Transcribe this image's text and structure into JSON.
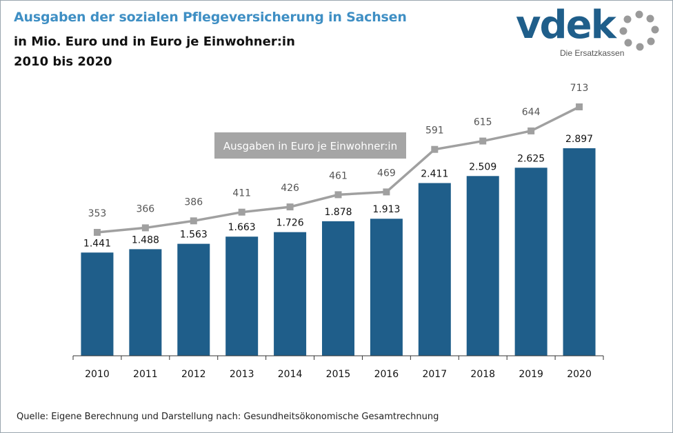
{
  "header": {
    "title": "Ausgaben der sozialen Pflegeversicherung in Sachsen",
    "subtitle_line1": "in Mio. Euro und in Euro je Einwohner:in",
    "subtitle_line2": "2010 bis 2020"
  },
  "logo": {
    "wordmark": "vdek",
    "tagline": "Die Ersatzkassen"
  },
  "source": "Quelle: Eigene Berechnung und Darstellung nach: Gesundheitsökonomische  Gesamtrechnung",
  "colors": {
    "title": "#3f8fc4",
    "bar": "#1f5e8a",
    "line": "#a0a0a0",
    "line_label": "#555555"
  },
  "chart_data": {
    "type": "bar",
    "categories": [
      "2010",
      "2011",
      "2012",
      "2013",
      "2014",
      "2015",
      "2016",
      "2017",
      "2018",
      "2019",
      "2020"
    ],
    "series": [
      {
        "type": "bar",
        "values": [
          1441,
          1488,
          1563,
          1663,
          1726,
          1878,
          1913,
          2411,
          2509,
          2625,
          2897
        ],
        "labels": [
          "1.441",
          "1.488",
          "1.563",
          "1.663",
          "1.726",
          "1.878",
          "1.913",
          "2.411",
          "2.509",
          "2.625",
          "2.897"
        ]
      },
      {
        "type": "line",
        "name": "Ausgaben in Euro je Einwohner:in",
        "values": [
          353,
          366,
          386,
          411,
          426,
          461,
          469,
          591,
          615,
          644,
          713
        ],
        "labels": [
          "353",
          "366",
          "386",
          "411",
          "426",
          "461",
          "469",
          "591",
          "615",
          "644",
          "713"
        ]
      }
    ],
    "legend": "top-center",
    "grid": false
  }
}
